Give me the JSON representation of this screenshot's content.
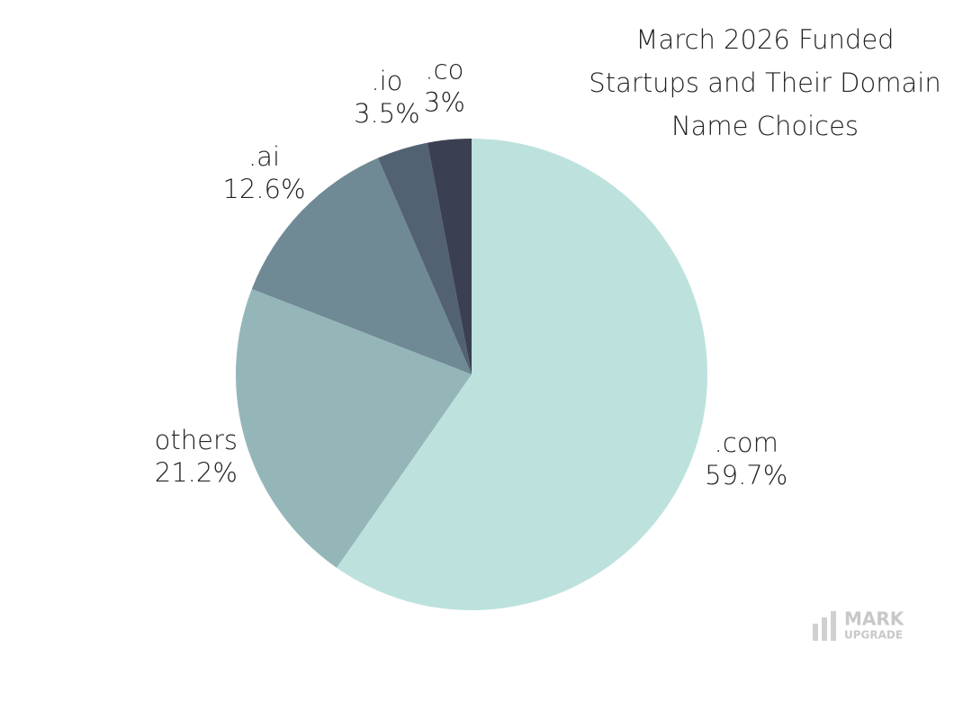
{
  "chart_data": {
    "type": "pie",
    "title": [
      "March 2026 Funded",
      "Startups and Their Domain",
      "Name Choices"
    ],
    "categories": [
      ".com",
      "others",
      ".ai",
      ".io",
      ".co"
    ],
    "values": [
      59.7,
      21.2,
      12.6,
      3.5,
      3
    ],
    "value_labels": [
      "59.7%",
      "21.2%",
      "12.6%",
      "3.5%",
      "3%"
    ],
    "colors": [
      "#bde2dd",
      "#95b6b9",
      "#6f8a94",
      "#536273",
      "#3a3f52"
    ]
  },
  "watermark": {
    "line1": "MARK",
    "line2": "UPGRADE"
  }
}
